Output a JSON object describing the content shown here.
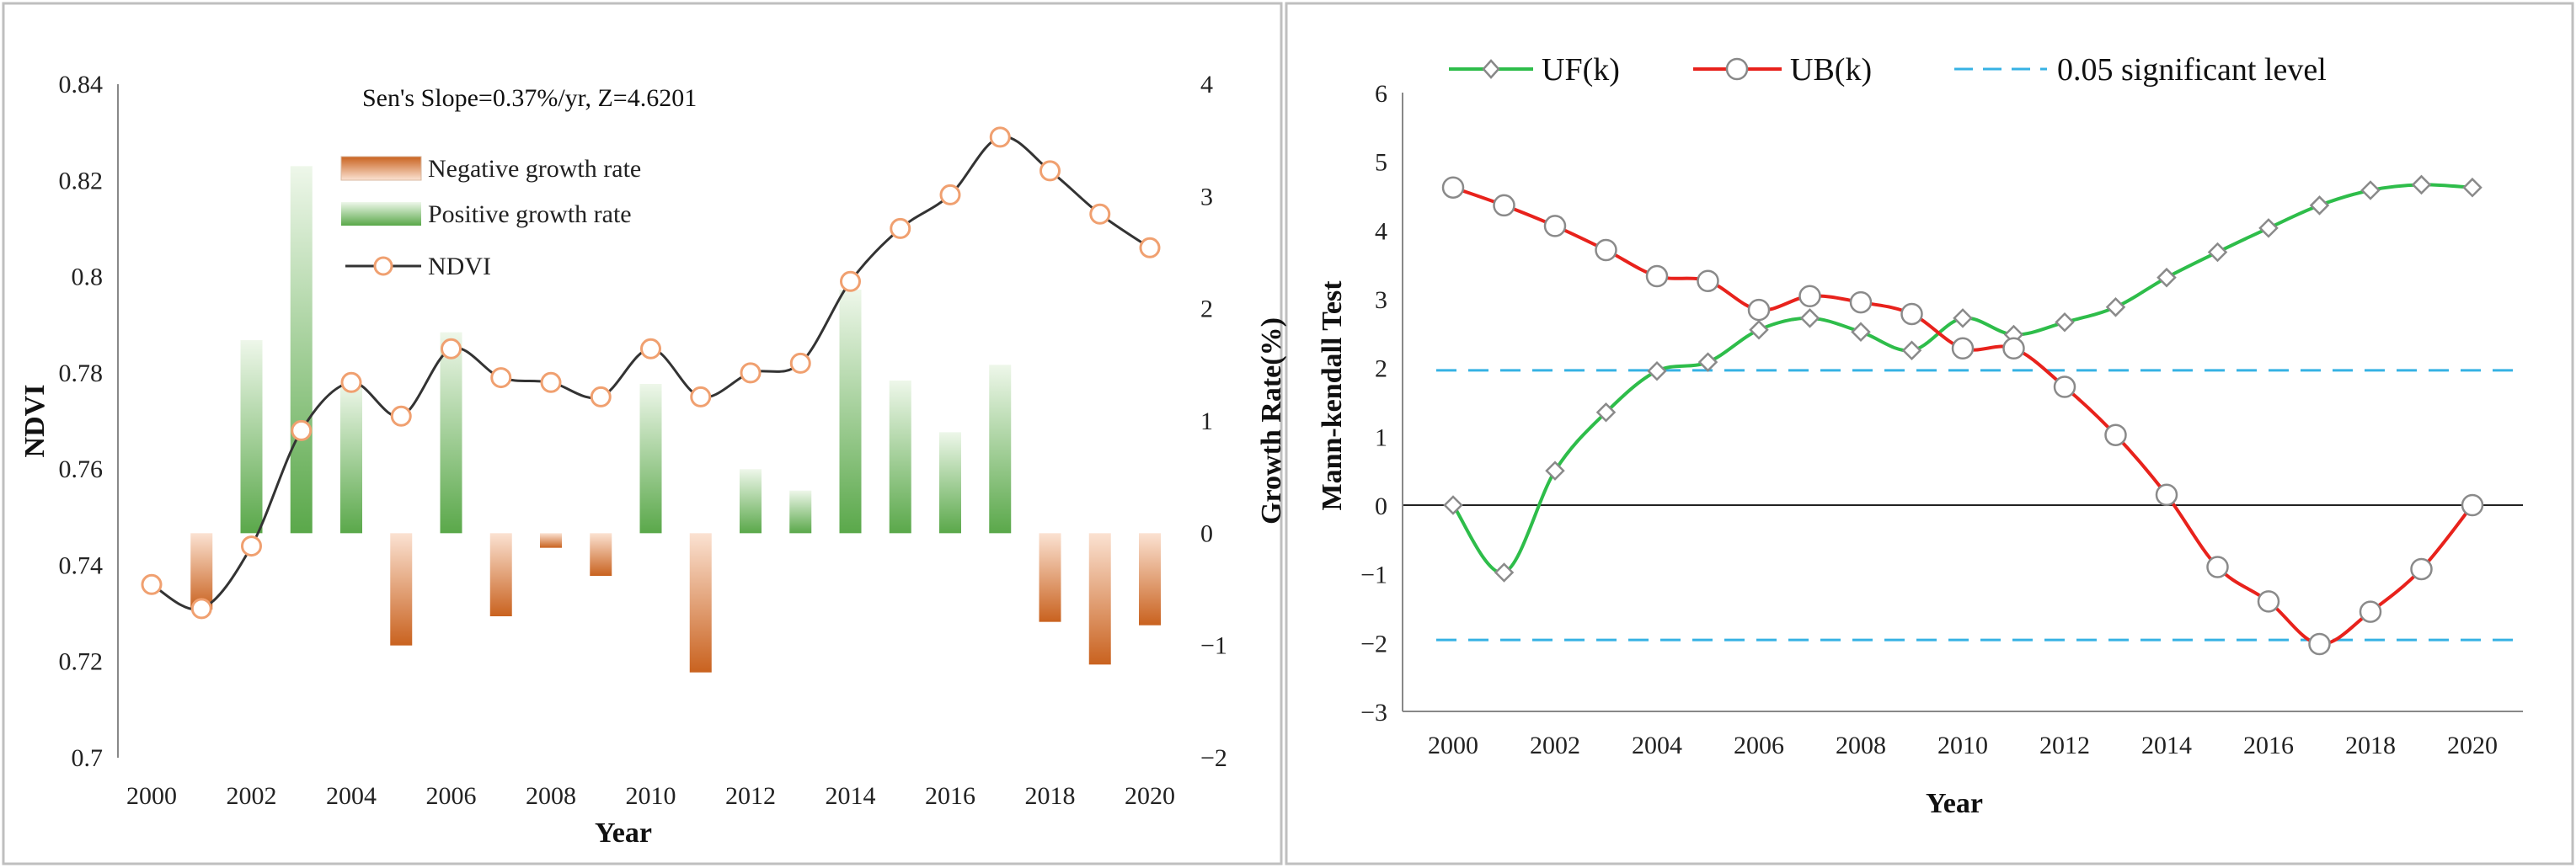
{
  "colors": {
    "bar_pos_dark": "#5aa84a",
    "bar_pos_light": "#eef7ea",
    "bar_neg_dark": "#c9621f",
    "bar_neg_light": "#fbe2d2",
    "ndvi_line": "#333333",
    "ndvi_marker": "#f0a070",
    "uf_line": "#2ebd4a",
    "ub_line": "#e8221c",
    "sig_line": "#36b2e4"
  },
  "chart_data": [
    {
      "type": "bar",
      "title": "",
      "annotation": "Sen's Slope=0.37%/yr,  Z=4.6201",
      "xlabel": "Year",
      "ylabel": "NDVI",
      "y2label": "Growth  Rate(%)",
      "x_ticks": [
        "2000",
        "2002",
        "2004",
        "2006",
        "2008",
        "2010",
        "2012",
        "2014",
        "2016",
        "2018",
        "2020"
      ],
      "y_ticks": [
        "0.7",
        "0.72",
        "0.74",
        "0.76",
        "0.78",
        "0.8",
        "0.82",
        "0.84"
      ],
      "y2_ticks": [
        "−2",
        "−1",
        "0",
        "1",
        "2",
        "3",
        "4"
      ],
      "ylim": [
        0.7,
        0.84
      ],
      "y2lim": [
        -2,
        4
      ],
      "legend": [
        {
          "name": "Negative growth rate",
          "marker": "neg-bar"
        },
        {
          "name": "Positive growth rate",
          "marker": "pos-bar"
        },
        {
          "name": "NDVI",
          "marker": "line-circle"
        }
      ],
      "ndvi": {
        "x": [
          2000,
          2001,
          2002,
          2003,
          2004,
          2005,
          2006,
          2007,
          2008,
          2009,
          2010,
          2011,
          2012,
          2013,
          2014,
          2015,
          2016,
          2017,
          2018,
          2019,
          2020
        ],
        "values": [
          0.736,
          0.731,
          0.744,
          0.768,
          0.778,
          0.771,
          0.785,
          0.779,
          0.778,
          0.775,
          0.785,
          0.775,
          0.78,
          0.782,
          0.799,
          0.81,
          0.817,
          0.829,
          0.822,
          0.813,
          0.806
        ]
      },
      "growth_rate": {
        "x": [
          2001,
          2002,
          2003,
          2004,
          2005,
          2006,
          2007,
          2008,
          2009,
          2010,
          2011,
          2012,
          2013,
          2014,
          2015,
          2016,
          2017,
          2018,
          2019,
          2020
        ],
        "values": [
          -0.68,
          1.72,
          3.27,
          1.33,
          -1.0,
          1.79,
          -0.74,
          -0.13,
          -0.38,
          1.33,
          -1.24,
          0.57,
          0.38,
          2.17,
          1.36,
          0.9,
          1.5,
          -0.79,
          -1.17,
          -0.82
        ]
      }
    },
    {
      "type": "line",
      "title": "",
      "xlabel": "Year",
      "ylabel": "Mann-kendall Test",
      "x_ticks": [
        "2000",
        "2002",
        "2004",
        "2006",
        "2008",
        "2010",
        "2012",
        "2014",
        "2016",
        "2018",
        "2020"
      ],
      "y_ticks": [
        "6",
        "5",
        "4",
        "3",
        "2",
        "1",
        "0",
        "−1",
        "−2",
        "−3"
      ],
      "ylim": [
        -3,
        6
      ],
      "xlim": [
        2000,
        2020
      ],
      "legend_position": "top",
      "significance_level": 1.96,
      "series": [
        {
          "name": "UF(k)",
          "marker": "diamond",
          "x": [
            2000,
            2001,
            2002,
            2003,
            2004,
            2005,
            2006,
            2007,
            2008,
            2009,
            2010,
            2011,
            2012,
            2013,
            2014,
            2015,
            2016,
            2017,
            2018,
            2019,
            2020
          ],
          "values": [
            0,
            -0.98,
            0.5,
            1.35,
            1.95,
            2.08,
            2.55,
            2.72,
            2.52,
            2.25,
            2.72,
            2.48,
            2.66,
            2.88,
            3.31,
            3.68,
            4.03,
            4.36,
            4.58,
            4.66,
            4.62
          ]
        },
        {
          "name": "UB(k)",
          "marker": "circle",
          "x": [
            2000,
            2001,
            2002,
            2003,
            2004,
            2005,
            2006,
            2007,
            2008,
            2009,
            2010,
            2011,
            2012,
            2013,
            2014,
            2015,
            2016,
            2017,
            2018,
            2019,
            2020
          ],
          "values": [
            4.62,
            4.36,
            4.06,
            3.71,
            3.33,
            3.26,
            2.84,
            3.04,
            2.95,
            2.78,
            2.28,
            2.28,
            1.72,
            1.02,
            0.15,
            -0.9,
            -1.4,
            -2.02,
            -1.55,
            -0.93,
            0
          ]
        },
        {
          "name": "0.05 significant level",
          "marker": "dashed",
          "values": [
            1.96,
            -1.96
          ]
        }
      ]
    }
  ]
}
